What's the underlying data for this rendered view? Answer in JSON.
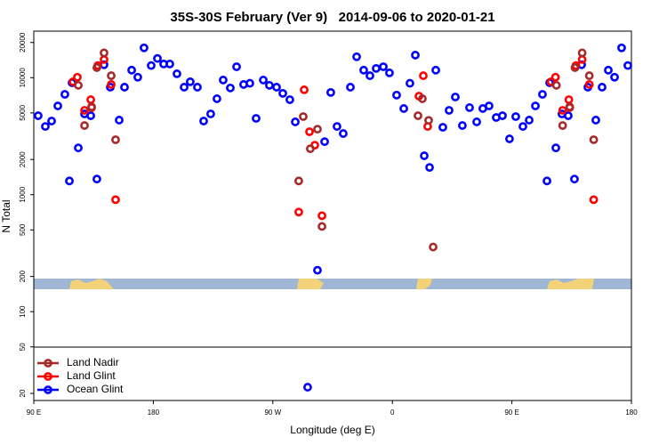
{
  "chart_data": {
    "type": "scatter",
    "title": "35S-30S February (Ver 9)   2014-09-06 to 2020-01-21",
    "xlabel": "Longitude (deg E)",
    "ylabel": "N Total",
    "xlim": [
      90,
      540
    ],
    "xticks": [
      {
        "value": 90,
        "label": "90 E"
      },
      180,
      {
        "value": 270,
        "label": "90 W"
      },
      {
        "value": 360,
        "label": "0"
      },
      {
        "value": 450,
        "label": "90 E"
      },
      {
        "value": 540,
        "label": "180"
      }
    ],
    "ylim": [
      17.4,
      25000
    ],
    "ylog": true,
    "yticks": [
      20,
      50,
      100,
      200,
      500,
      1000,
      2000,
      5000,
      10000,
      20000
    ],
    "legend": "bottom-left",
    "series": [
      {
        "name": "Ocean Glint",
        "color": "#0000ff",
        "x": [
          93.3,
          98.7,
          103.4,
          108.1,
          113.4,
          116.8,
          118.8,
          123.5,
          128.2,
          132.9,
          137.5,
          142.9,
          147.6,
          154.3,
          158.3,
          163.7,
          168.3,
          173.0,
          178.4,
          183.1,
          187.8,
          192.4,
          197.8,
          203.2,
          207.8,
          213.2,
          217.9,
          223.2,
          227.9,
          232.6,
          238.0,
          242.7,
          248.0,
          252.7,
          257.4,
          262.8,
          267.4,
          272.8,
          277.5,
          282.8,
          286.9,
          296.2,
          303.6,
          309.0,
          313.6,
          318.3,
          323.0,
          328.4,
          333.1,
          338.4,
          343.1,
          347.8,
          353.2,
          357.8,
          363.2,
          368.6,
          373.2,
          377.3,
          384.0,
          388.0,
          392.7,
          398.0,
          402.7,
          407.4,
          412.7,
          418.1,
          423.5,
          428.1,
          432.8,
          438.2,
          442.9,
          448.2,
          452.9,
          458.3,
          463.0,
          467.7,
          473.0,
          476.4,
          478.4,
          483.1,
          487.7,
          492.4,
          497.1,
          502.5,
          507.2,
          513.2,
          517.9,
          522.6,
          527.3,
          532.6,
          537.3
        ],
        "values": [
          4730,
          3830,
          4260,
          5740,
          7210,
          1310,
          9060,
          2510,
          4900,
          4730,
          1360,
          12900,
          8300,
          4340,
          8300,
          11600,
          10100,
          18000,
          12700,
          14600,
          13100,
          13100,
          10800,
          8300,
          9230,
          8300,
          4260,
          4900,
          6610,
          9550,
          8170,
          12400,
          8750,
          8960,
          4490,
          9550,
          8610,
          8300,
          7350,
          6490,
          4190,
          22.6,
          226,
          2840,
          7480,
          3830,
          3330,
          8300,
          15100,
          11600,
          10400,
          12000,
          12400,
          11000,
          7100,
          5450,
          8960,
          15600,
          2150,
          1710,
          11600,
          3770,
          5260,
          6840,
          3900,
          5550,
          4190,
          5450,
          5740,
          4570,
          4730,
          3000,
          4650,
          3830,
          4340,
          5740,
          7210,
          1310,
          9060,
          2510,
          4900,
          4730,
          1360,
          12900,
          8300,
          4340,
          8300,
          11600,
          10100,
          18000,
          12700
        ]
      },
      {
        "name": "Land Glint",
        "color": "#ff0000",
        "x": [
          119.5,
          122.8,
          128.2,
          132.9,
          133.5,
          138.2,
          142.9,
          148.3,
          151.6,
          293.6,
          289.5,
          297.6,
          301.6,
          307.0,
          380.0,
          383.3,
          386.6,
          479.5,
          482.8,
          488.2,
          492.9,
          493.5,
          498.2,
          502.9,
          508.3,
          511.6
        ],
        "values": [
          9230,
          10100,
          5260,
          6490,
          5550,
          12700,
          14300,
          8750,
          906,
          7880,
          710,
          3450,
          2650,
          661,
          6960,
          10400,
          3830,
          9230,
          10100,
          5260,
          6490,
          5550,
          12700,
          14300,
          8750,
          906
        ]
      },
      {
        "name": "Land Nadir",
        "color": "#a52a2a",
        "x": [
          123.5,
          128.2,
          133.5,
          137.5,
          142.9,
          148.3,
          151.6,
          289.5,
          292.9,
          298.2,
          303.6,
          307.0,
          379.3,
          382.6,
          387.3,
          390.7,
          483.5,
          488.2,
          493.5,
          497.5,
          502.9,
          508.3,
          511.6
        ],
        "values": [
          8610,
          3900,
          5640,
          12200,
          16300,
          10400,
          2950,
          1310,
          4650,
          2470,
          3630,
          535,
          4730,
          6610,
          4320,
          357,
          8610,
          3900,
          5640,
          12200,
          16300,
          10400,
          2950
        ]
      }
    ]
  }
}
